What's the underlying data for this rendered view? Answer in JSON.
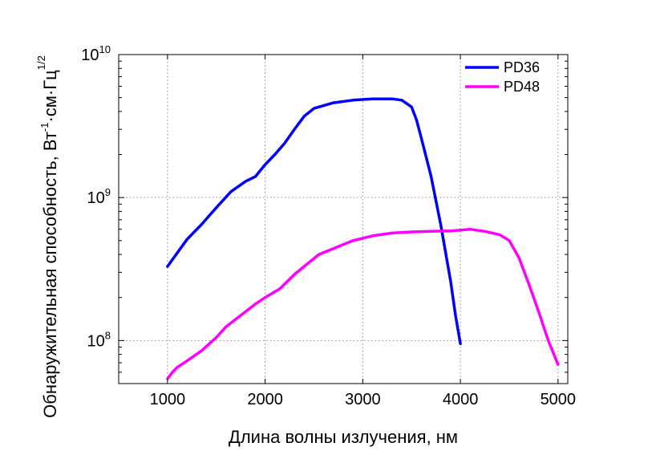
{
  "chart_data": {
    "type": "line",
    "title": "",
    "xlabel": "Длина волны излучения, нм",
    "ylabel": "Обнаружительная способность, Вт·см·Гц",
    "ylabel_parts": {
      "main": "Обнаружительная способность, Вт",
      "sup1": "-1",
      "mid": "·см·Гц",
      "sup2": "1/2"
    },
    "xlim": [
      500,
      5100
    ],
    "ylim": [
      50000000,
      10000000000
    ],
    "yscale": "log",
    "grid": true,
    "legend_position": "top-right",
    "x_ticks": [
      {
        "value": 1000,
        "label": "1000"
      },
      {
        "value": 2000,
        "label": "2000"
      },
      {
        "value": 3000,
        "label": "3000"
      },
      {
        "value": 4000,
        "label": "4000"
      },
      {
        "value": 5000,
        "label": "5000"
      }
    ],
    "y_ticks": [
      {
        "value": 100000000,
        "base": "10",
        "exp": "8"
      },
      {
        "value": 1000000000,
        "base": "10",
        "exp": "9"
      },
      {
        "value": 10000000000,
        "base": "10",
        "exp": "10"
      }
    ],
    "series": [
      {
        "name": "PD36",
        "color": "#0000ff",
        "x": [
          1000,
          1100,
          1200,
          1350,
          1500,
          1650,
          1800,
          1900,
          2000,
          2100,
          2200,
          2300,
          2400,
          2500,
          2700,
          2900,
          3100,
          3300,
          3400,
          3500,
          3550,
          3600,
          3700,
          3800,
          3900,
          3950,
          4000
        ],
        "y": [
          330000000,
          410000000,
          510000000,
          650000000,
          850000000,
          1100000000,
          1300000000,
          1400000000,
          1700000000,
          2000000000,
          2400000000,
          3000000000,
          3700000000,
          4200000000,
          4600000000,
          4800000000,
          4900000000,
          4900000000,
          4800000000,
          4300000000,
          3500000000,
          2600000000,
          1400000000,
          640000000,
          260000000,
          150000000,
          95000000
        ]
      },
      {
        "name": "PD48",
        "color": "#ff00ff",
        "x": [
          1000,
          1050,
          1100,
          1200,
          1350,
          1500,
          1600,
          1750,
          1900,
          2000,
          2150,
          2300,
          2400,
          2550,
          2700,
          2900,
          3100,
          3300,
          3500,
          3700,
          3900,
          4100,
          4250,
          4400,
          4500,
          4600,
          4700,
          4800,
          4900,
          5000
        ],
        "y": [
          54000000,
          60000000,
          65000000,
          72000000,
          85000000,
          105000000,
          125000000,
          150000000,
          180000000,
          200000000,
          230000000,
          290000000,
          330000000,
          400000000,
          440000000,
          500000000,
          540000000,
          565000000,
          575000000,
          580000000,
          585000000,
          600000000,
          580000000,
          550000000,
          500000000,
          380000000,
          250000000,
          160000000,
          100000000,
          68000000
        ]
      }
    ]
  }
}
